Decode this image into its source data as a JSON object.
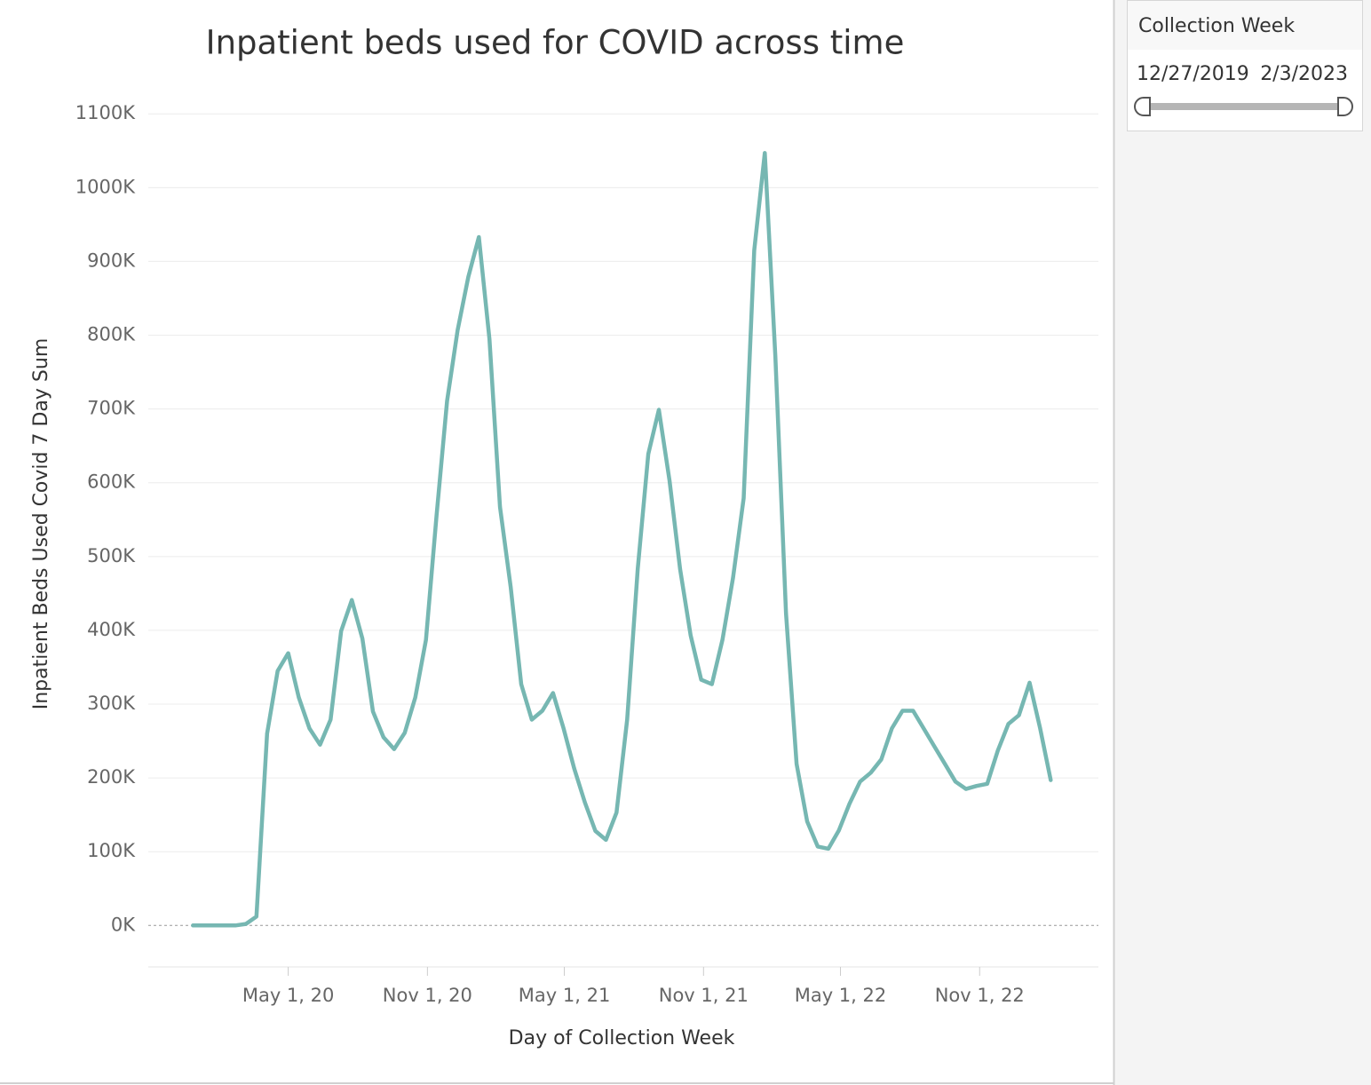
{
  "chart_data": {
    "type": "line",
    "title": "Inpatient beds used for COVID across time",
    "x_label": "Day of Collection Week",
    "y_label": "Inpatient Beds Used Covid 7 Day Sum",
    "x": [
      "2019-12-27",
      "2020-01-10",
      "2020-01-24",
      "2020-02-07",
      "2020-02-21",
      "2020-03-06",
      "2020-03-20",
      "2020-04-03",
      "2020-04-17",
      "2020-05-01",
      "2020-05-15",
      "2020-05-29",
      "2020-06-12",
      "2020-06-26",
      "2020-07-10",
      "2020-07-24",
      "2020-08-07",
      "2020-08-21",
      "2020-09-04",
      "2020-09-18",
      "2020-10-02",
      "2020-10-16",
      "2020-10-30",
      "2020-11-13",
      "2020-11-27",
      "2020-12-11",
      "2020-12-25",
      "2021-01-08",
      "2021-01-22",
      "2021-02-05",
      "2021-02-19",
      "2021-03-05",
      "2021-03-19",
      "2021-04-02",
      "2021-04-16",
      "2021-04-30",
      "2021-05-14",
      "2021-05-28",
      "2021-06-11",
      "2021-06-25",
      "2021-07-09",
      "2021-07-23",
      "2021-08-06",
      "2021-08-20",
      "2021-09-03",
      "2021-09-17",
      "2021-10-01",
      "2021-10-15",
      "2021-10-29",
      "2021-11-12",
      "2021-11-26",
      "2021-12-10",
      "2021-12-24",
      "2022-01-07",
      "2022-01-21",
      "2022-02-04",
      "2022-02-18",
      "2022-03-04",
      "2022-03-18",
      "2022-04-01",
      "2022-04-15",
      "2022-04-29",
      "2022-05-13",
      "2022-05-27",
      "2022-06-10",
      "2022-06-24",
      "2022-07-08",
      "2022-07-22",
      "2022-08-05",
      "2022-08-19",
      "2022-09-02",
      "2022-09-16",
      "2022-09-30",
      "2022-10-14",
      "2022-10-28",
      "2022-11-11",
      "2022-11-25",
      "2022-12-09",
      "2022-12-23",
      "2023-01-06",
      "2023-01-20",
      "2023-02-03"
    ],
    "values": [
      0,
      0,
      0,
      0,
      0,
      2,
      12,
      260,
      345,
      369,
      309,
      267,
      245,
      279,
      399,
      441,
      389,
      290,
      255,
      239,
      261,
      309,
      387,
      555,
      711,
      807,
      879,
      933,
      795,
      567,
      459,
      327,
      279,
      291,
      315,
      267,
      213,
      167,
      128,
      116,
      153,
      279,
      483,
      639,
      699,
      603,
      483,
      393,
      333,
      327,
      387,
      471,
      579,
      915,
      1047,
      771,
      423,
      219,
      141,
      107,
      104,
      129,
      165,
      195,
      207,
      225,
      267,
      291,
      291,
      267,
      243,
      219,
      195,
      185,
      189,
      192,
      237,
      273,
      285,
      329,
      267,
      197
    ],
    "color": "#76b7b2",
    "xlim": [
      "2019-10-29",
      "2023-04-07"
    ],
    "xticks": [
      {
        "value": "2020-05-01",
        "label": "May 1, 20"
      },
      {
        "value": "2020-11-01",
        "label": "Nov 1, 20"
      },
      {
        "value": "2021-05-01",
        "label": "May 1, 21"
      },
      {
        "value": "2021-11-01",
        "label": "Nov 1, 21"
      },
      {
        "value": "2022-05-01",
        "label": "May 1, 22"
      },
      {
        "value": "2022-11-01",
        "label": "Nov 1, 22"
      }
    ],
    "ylim": [
      -55,
      1140
    ],
    "yticks": [
      {
        "value": 0,
        "label": "0K"
      },
      {
        "value": 100,
        "label": "100K"
      },
      {
        "value": 200,
        "label": "200K"
      },
      {
        "value": 300,
        "label": "300K"
      },
      {
        "value": 400,
        "label": "400K"
      },
      {
        "value": 500,
        "label": "500K"
      },
      {
        "value": 600,
        "label": "600K"
      },
      {
        "value": 700,
        "label": "700K"
      },
      {
        "value": 800,
        "label": "800K"
      },
      {
        "value": 900,
        "label": "900K"
      },
      {
        "value": 1000,
        "label": "1000K"
      },
      {
        "value": 1100,
        "label": "1100K"
      }
    ],
    "grid": true
  },
  "filter": {
    "title": "Collection Week",
    "start": "12/27/2019",
    "end": "2/3/2023"
  }
}
